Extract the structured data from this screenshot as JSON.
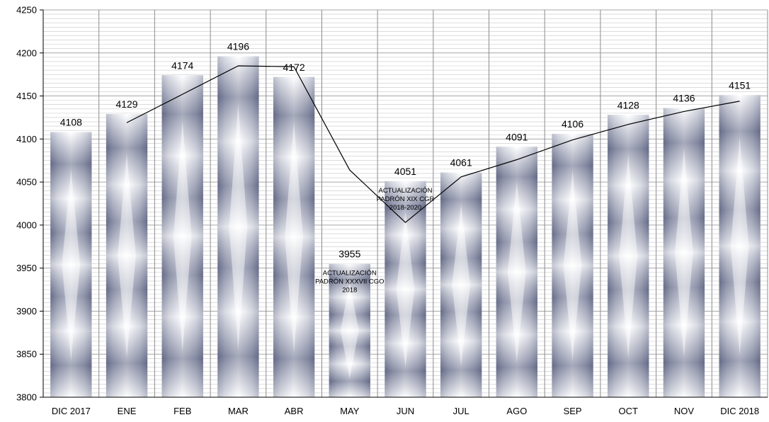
{
  "chart_data": {
    "type": "bar",
    "title": "",
    "xlabel": "",
    "ylabel": "",
    "ylim": [
      3800,
      4250
    ],
    "y_ticks": [
      3800,
      3850,
      3900,
      3950,
      4000,
      4050,
      4100,
      4150,
      4200,
      4250
    ],
    "grid": true,
    "categories": [
      "DIC 2017",
      "ENE",
      "FEB",
      "MAR",
      "ABR",
      "MAY",
      "JUN",
      "JUL",
      "AGO",
      "SEP",
      "OCT",
      "NOV",
      "DIC 2018"
    ],
    "values": [
      4108,
      4129,
      4174,
      4196,
      4172,
      3955,
      4051,
      4061,
      4091,
      4106,
      4128,
      4136,
      4151
    ],
    "line": {
      "type": "line",
      "x_from_index": 1.5,
      "values": [
        4119,
        4152,
        4185,
        4184,
        4064,
        4003,
        4056,
        4076,
        4099,
        4117,
        4132,
        4144
      ]
    },
    "annotations": [
      {
        "category": "MAY",
        "lines": [
          "ACTUALIZACIÓN",
          "PADRÓN XXXVII CGO",
          "2018"
        ]
      },
      {
        "category": "JUN",
        "lines": [
          "ACTUALIZACIÓN",
          "PADRÓN XIX CGR",
          "2018-2020"
        ]
      }
    ],
    "colors": {
      "bar_dark": "#6f7590",
      "bar_light": "#f4f4f8",
      "line": "#000000",
      "grid": "#bfbfbf"
    }
  }
}
